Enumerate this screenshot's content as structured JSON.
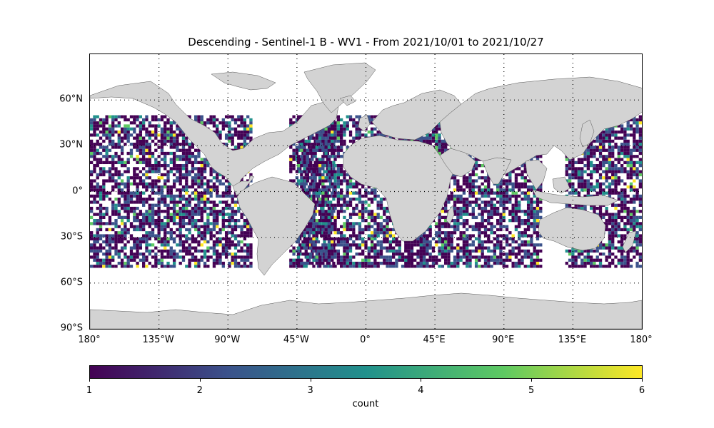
{
  "title": "Descending - Sentinel-1 B - WV1 - From 2021/10/01 to 2021/10/27",
  "lat_labels": [
    "60°N",
    "30°N",
    "0°",
    "30°S",
    "60°S",
    "90°S"
  ],
  "lat_values": [
    60,
    30,
    0,
    -30,
    -60,
    -90
  ],
  "lon_labels": [
    "180°",
    "135°W",
    "90°W",
    "45°W",
    "0°",
    "45°E",
    "90°E",
    "135°E",
    "180°"
  ],
  "lon_values": [
    -180,
    -135,
    -90,
    -45,
    0,
    45,
    90,
    135,
    180
  ],
  "colorbar": {
    "label": "count",
    "ticks": [
      "1",
      "2",
      "3",
      "4",
      "5",
      "6"
    ],
    "tick_values": [
      1,
      2,
      3,
      4,
      5,
      6
    ],
    "colormap": "viridis",
    "colors": [
      "#440154",
      "#3b528b",
      "#21918c",
      "#5ec962",
      "#fde725"
    ]
  },
  "map": {
    "projection": "PlateCarree",
    "extent": [
      -180,
      180,
      -90,
      90
    ],
    "land_color": "#d3d3d3",
    "graticule": "dotted",
    "data_lat_range": [
      -50,
      50
    ],
    "swath_lon_ranges": [
      [
        -180,
        -75
      ],
      [
        -50,
        -20
      ],
      [
        -45,
        40
      ],
      [
        25,
        115
      ],
      [
        130,
        180
      ]
    ]
  }
}
